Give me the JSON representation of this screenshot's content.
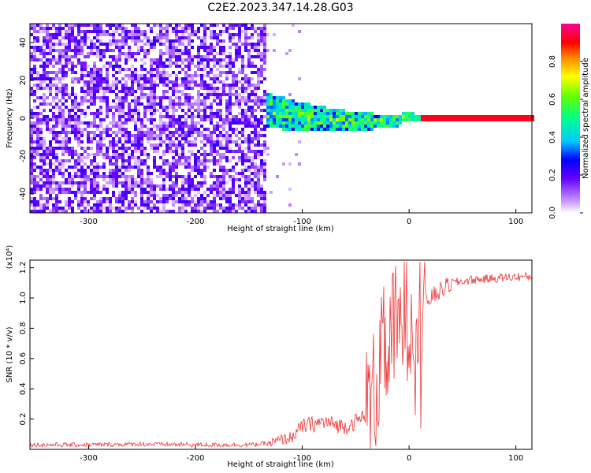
{
  "chart_data": [
    {
      "type": "heatmap",
      "title": "C2E2.2023.347.14.28.G03",
      "xlabel": "Height of straight line (km)",
      "ylabel": "Frequency (Hz)",
      "xlim": [
        -355,
        115
      ],
      "ylim": [
        -50,
        50
      ],
      "xticks": [
        -300,
        -200,
        -100,
        0,
        100
      ],
      "yticks": [
        -40,
        -20,
        0,
        20,
        40
      ],
      "colorbar": {
        "label": "Normalized spectral amplitude",
        "range": [
          0,
          1
        ],
        "ticks": [
          0.0,
          0.2,
          0.4,
          0.6,
          0.8
        ],
        "tick_labels": [
          "0.0",
          "0.2",
          "0.4",
          "0.6",
          "0.8"
        ],
        "colormap": "white-purple-blue-cyan-green-yellow-red-magenta"
      },
      "regions": [
        {
          "x_range": [
            -355,
            -135
          ],
          "f_range": [
            -50,
            50
          ],
          "amplitude": "low-noise 0.05-0.25"
        },
        {
          "x_range": [
            -150,
            10
          ],
          "f_center": [
            6,
            0
          ],
          "f_width_hz": 16,
          "amplitude": "0.2-0.6 spread, drifting toward 0 Hz"
        },
        {
          "x_range": [
            0,
            115
          ],
          "f_center": 0,
          "f_width_hz": 2,
          "amplitude": "~0.9 narrow line"
        }
      ]
    },
    {
      "type": "line",
      "xlabel": "Height of straight line (km)",
      "ylabel": "SNR (10 * v/v)",
      "y_multiplier": "(x10⁴)",
      "xlim": [
        -355,
        115
      ],
      "ylim": [
        0,
        1.25
      ],
      "xticks": [
        -300,
        -200,
        -100,
        0,
        100
      ],
      "yticks": [
        0.2,
        0.4,
        0.6,
        0.8,
        1.0,
        1.2
      ],
      "color": "#ee3333",
      "series": [
        {
          "x": [
            -355,
            -300,
            -250,
            -200,
            -150,
            -130,
            -110,
            -100,
            -80,
            -60,
            -45,
            -35,
            -25,
            -20,
            -15,
            -10,
            -5,
            0,
            5,
            10,
            20,
            30,
            40,
            50,
            60,
            80,
            100,
            115
          ],
          "y": [
            0.03,
            0.03,
            0.035,
            0.03,
            0.03,
            0.04,
            0.08,
            0.15,
            0.18,
            0.15,
            0.2,
            0.3,
            0.6,
            0.7,
            0.8,
            0.75,
            0.9,
            0.9,
            0.9,
            0.95,
            1.0,
            1.05,
            1.1,
            1.11,
            1.12,
            1.13,
            1.14,
            1.14
          ]
        }
      ]
    }
  ]
}
